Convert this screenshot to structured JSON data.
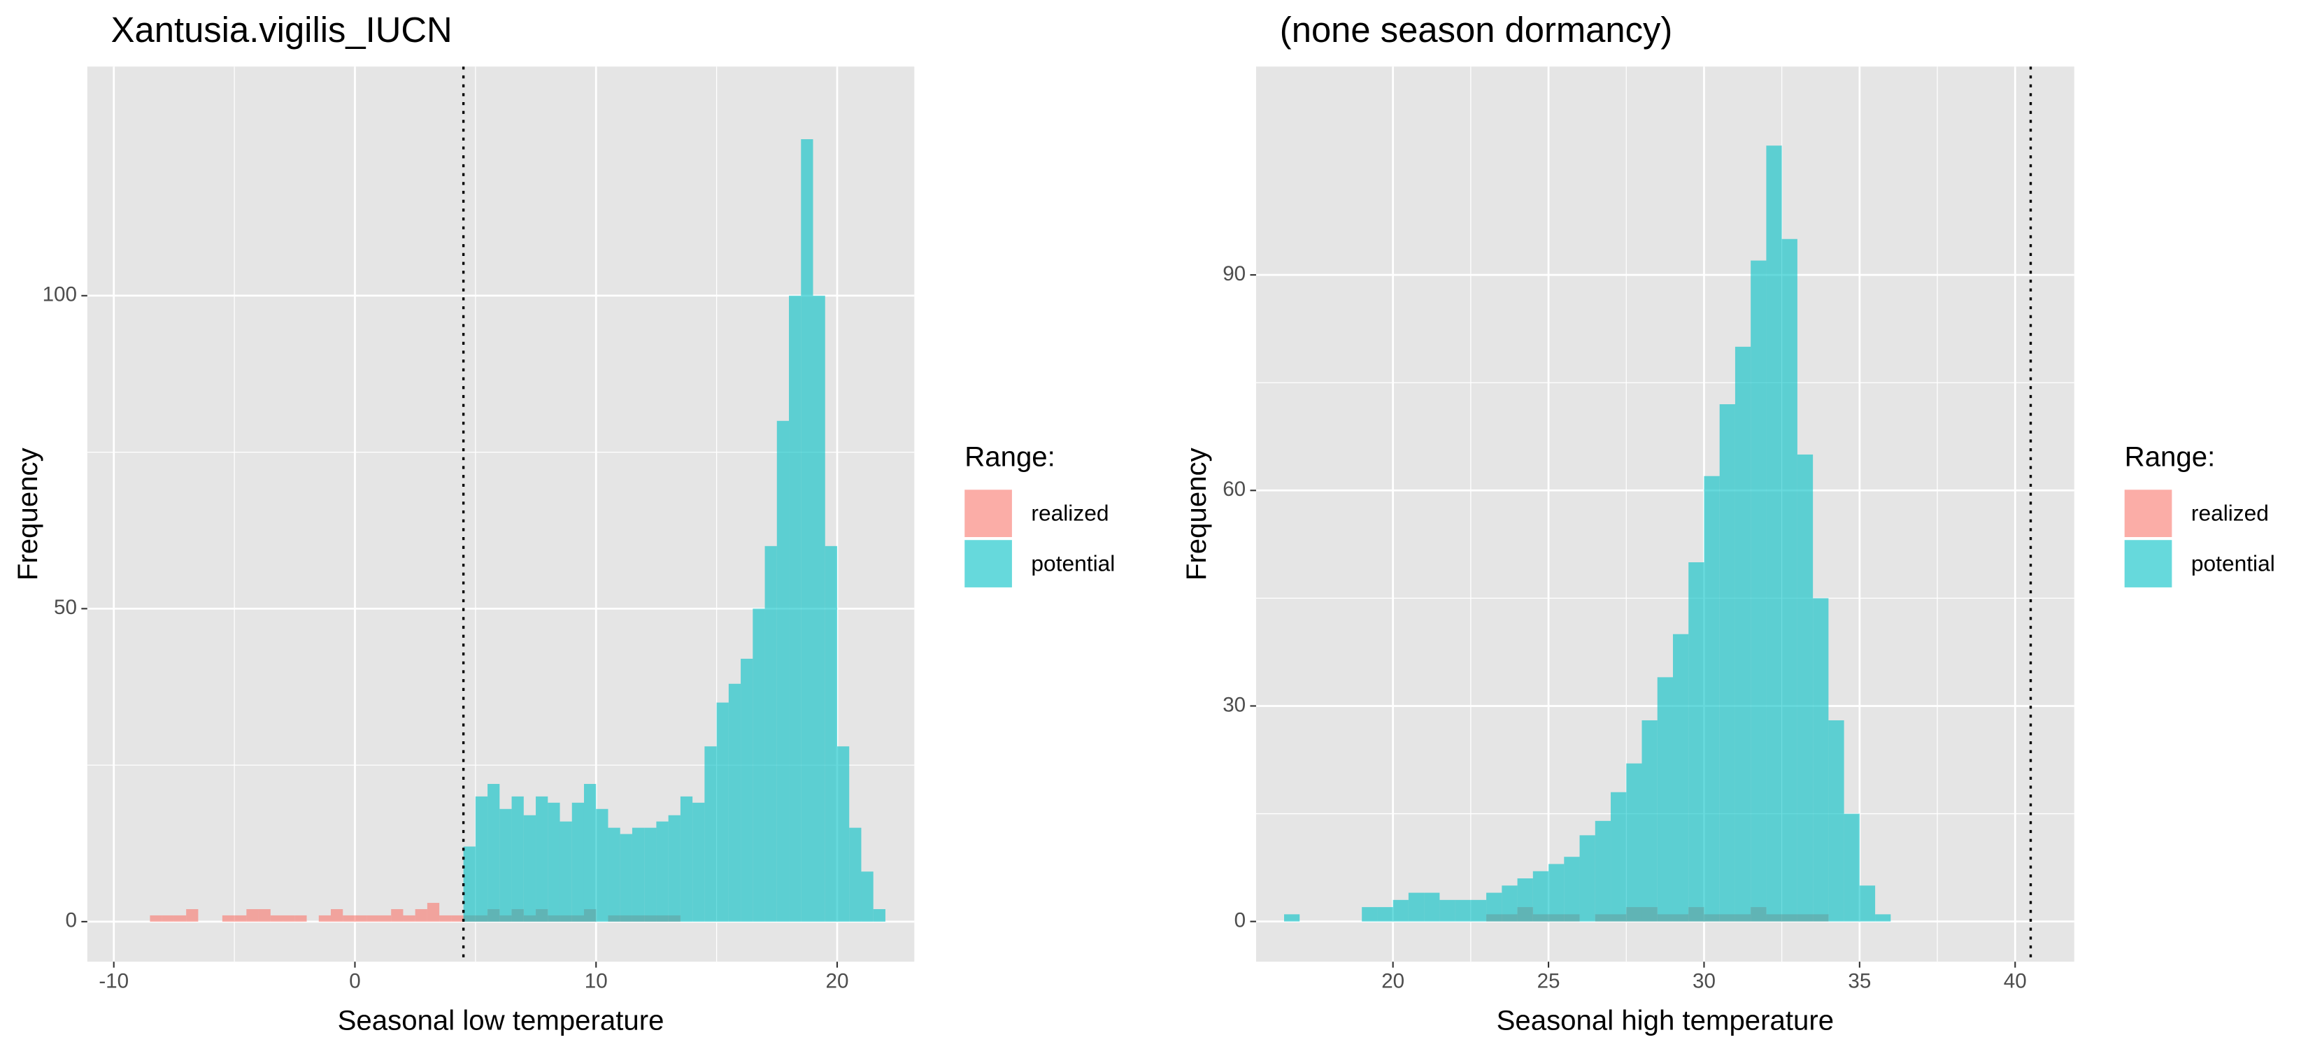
{
  "chart_data": [
    {
      "type": "histogram",
      "title": "Xantusia.vigilis_IUCN",
      "x_label": "Seasonal low temperature",
      "y_label": "Frequency",
      "legend_title": "Range:",
      "grid": true,
      "vline": 4.5,
      "alpha": 0.6,
      "xlim": [
        -11.1,
        23.2
      ],
      "ylim": [
        -6.4,
        136.6
      ],
      "xticks": [
        -10,
        0,
        10,
        20
      ],
      "yticks": [
        0,
        50,
        100
      ],
      "bins": [
        -9,
        -8.5,
        -8,
        -7.5,
        -7,
        -6.5,
        -6,
        -5.5,
        -5,
        -4.5,
        -4,
        -3.5,
        -3,
        -2.5,
        -2,
        -1.5,
        -1,
        -0.5,
        0,
        0.5,
        1,
        1.5,
        2,
        2.5,
        3,
        3.5,
        4,
        4.5,
        5,
        5.5,
        6,
        6.5,
        7,
        7.5,
        8,
        8.5,
        9,
        9.5,
        10,
        10.5,
        11,
        11.5,
        12,
        12.5,
        13,
        13.5,
        14,
        14.5,
        15,
        15.5,
        16,
        16.5,
        17,
        17.5,
        18,
        18.5,
        19,
        19.5,
        20,
        20.5,
        21,
        21.5,
        22
      ],
      "series": [
        {
          "name": "realized",
          "color": "#f8766d",
          "values": [
            0,
            1,
            1,
            1,
            2,
            0,
            0,
            1,
            1,
            2,
            2,
            1,
            1,
            1,
            0,
            1,
            2,
            1,
            1,
            1,
            1,
            2,
            1,
            2,
            3,
            1,
            1,
            1,
            1,
            2,
            1,
            2,
            1,
            2,
            1,
            1,
            1,
            2,
            0,
            1,
            1,
            1,
            1,
            1,
            1,
            0,
            0,
            0,
            0,
            0,
            0,
            0,
            0,
            0,
            0,
            0,
            0,
            0,
            0,
            0,
            0,
            0
          ]
        },
        {
          "name": "potential",
          "color": "#00bfc4",
          "values": [
            0,
            0,
            0,
            0,
            0,
            0,
            0,
            0,
            0,
            0,
            0,
            0,
            0,
            0,
            0,
            0,
            0,
            0,
            0,
            0,
            0,
            0,
            0,
            0,
            0,
            0,
            0,
            12,
            20,
            22,
            18,
            20,
            17,
            20,
            19,
            16,
            19,
            22,
            18,
            15,
            14,
            15,
            15,
            16,
            17,
            20,
            19,
            28,
            35,
            38,
            42,
            50,
            60,
            80,
            100,
            125,
            100,
            60,
            28,
            15,
            8,
            2
          ]
        }
      ]
    },
    {
      "type": "histogram",
      "title": "(none season dormancy)",
      "x_label": "Seasonal high temperature",
      "y_label": "Frequency",
      "legend_title": "Range:",
      "grid": true,
      "vline": 40.5,
      "alpha": 0.6,
      "xlim": [
        15.6,
        41.9
      ],
      "ylim": [
        -5.6,
        119
      ],
      "xticks": [
        20,
        25,
        30,
        35,
        40
      ],
      "yticks": [
        0,
        30,
        60,
        90
      ],
      "bins": [
        16.5,
        17,
        17.5,
        18,
        18.5,
        19,
        19.5,
        20,
        20.5,
        21,
        21.5,
        22,
        22.5,
        23,
        23.5,
        24,
        24.5,
        25,
        25.5,
        26,
        26.5,
        27,
        27.5,
        28,
        28.5,
        29,
        29.5,
        30,
        30.5,
        31,
        31.5,
        32,
        32.5,
        33,
        33.5,
        34,
        34.5,
        35,
        35.5,
        36
      ],
      "series": [
        {
          "name": "realized",
          "color": "#f8766d",
          "values": [
            0,
            0,
            0,
            0,
            0,
            0,
            0,
            0,
            0,
            0,
            0,
            0,
            0,
            1,
            1,
            2,
            1,
            1,
            1,
            0,
            1,
            1,
            2,
            2,
            1,
            1,
            2,
            1,
            1,
            1,
            2,
            1,
            1,
            1,
            1,
            0,
            0,
            0,
            0
          ]
        },
        {
          "name": "potential",
          "color": "#00bfc4",
          "values": [
            1,
            0,
            0,
            0,
            0,
            2,
            2,
            3,
            4,
            4,
            3,
            3,
            3,
            4,
            5,
            6,
            7,
            8,
            9,
            12,
            14,
            18,
            22,
            28,
            34,
            40,
            50,
            62,
            72,
            80,
            92,
            108,
            95,
            65,
            45,
            28,
            15,
            5,
            1
          ]
        }
      ]
    }
  ]
}
